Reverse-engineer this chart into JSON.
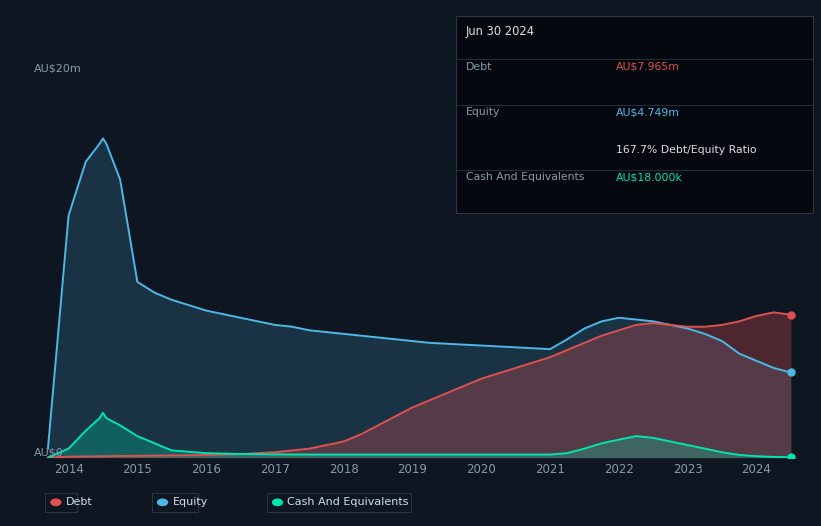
{
  "bg_color": "#0e1621",
  "plot_bg_color": "#0e1621",
  "grid_color": "#1a2535",
  "title_date": "Jun 30 2024",
  "info_box": {
    "debt_label": "Debt",
    "debt_value": "AU$7.965m",
    "equity_label": "Equity",
    "equity_value": "AU$4.749m",
    "ratio_text": "167.7% Debt/Equity Ratio",
    "cash_label": "Cash And Equivalents",
    "cash_value": "AU$18.000k"
  },
  "y_label_top": "AU$20m",
  "y_label_bottom": "AU$0",
  "debt_color": "#e05050",
  "equity_color": "#4db8e8",
  "cash_color": "#00e5b0",
  "equity_data_x": [
    2013.7,
    2014.0,
    2014.25,
    2014.45,
    2014.5,
    2014.55,
    2014.75,
    2015.0,
    2015.25,
    2015.5,
    2015.75,
    2016.0,
    2016.25,
    2016.5,
    2016.75,
    2017.0,
    2017.25,
    2017.5,
    2017.75,
    2018.0,
    2018.25,
    2018.5,
    2018.75,
    2019.0,
    2019.25,
    2019.5,
    2019.75,
    2020.0,
    2020.25,
    2020.5,
    2020.75,
    2021.0,
    2021.25,
    2021.5,
    2021.75,
    2022.0,
    2022.25,
    2022.5,
    2022.75,
    2023.0,
    2023.25,
    2023.5,
    2023.75,
    2024.0,
    2024.25,
    2024.5
  ],
  "equity_data_y": [
    0.5,
    13.5,
    16.5,
    17.5,
    17.8,
    17.5,
    15.5,
    9.8,
    9.2,
    8.8,
    8.5,
    8.2,
    8.0,
    7.8,
    7.6,
    7.4,
    7.3,
    7.1,
    7.0,
    6.9,
    6.8,
    6.7,
    6.6,
    6.5,
    6.4,
    6.35,
    6.3,
    6.25,
    6.2,
    6.15,
    6.1,
    6.05,
    6.6,
    7.2,
    7.6,
    7.8,
    7.7,
    7.6,
    7.4,
    7.2,
    6.9,
    6.5,
    5.8,
    5.4,
    5.0,
    4.749
  ],
  "debt_data_x": [
    2013.7,
    2014.0,
    2014.5,
    2015.0,
    2015.5,
    2016.0,
    2016.5,
    2017.0,
    2017.5,
    2018.0,
    2018.25,
    2018.5,
    2018.75,
    2019.0,
    2019.25,
    2019.5,
    2019.75,
    2020.0,
    2020.25,
    2020.5,
    2020.75,
    2021.0,
    2021.25,
    2021.5,
    2021.75,
    2022.0,
    2022.25,
    2022.5,
    2022.75,
    2023.0,
    2023.25,
    2023.5,
    2023.75,
    2024.0,
    2024.25,
    2024.5
  ],
  "debt_data_y": [
    0.0,
    0.05,
    0.08,
    0.1,
    0.12,
    0.15,
    0.2,
    0.3,
    0.5,
    0.9,
    1.3,
    1.8,
    2.3,
    2.8,
    3.2,
    3.6,
    4.0,
    4.4,
    4.7,
    5.0,
    5.3,
    5.6,
    6.0,
    6.4,
    6.8,
    7.1,
    7.4,
    7.5,
    7.4,
    7.3,
    7.3,
    7.4,
    7.6,
    7.9,
    8.1,
    7.965
  ],
  "cash_data_x": [
    2013.7,
    2014.0,
    2014.25,
    2014.45,
    2014.5,
    2014.55,
    2014.75,
    2015.0,
    2015.25,
    2015.5,
    2016.0,
    2016.5,
    2017.0,
    2017.5,
    2018.0,
    2018.5,
    2019.0,
    2019.5,
    2020.0,
    2020.5,
    2021.0,
    2021.25,
    2021.5,
    2021.75,
    2022.0,
    2022.25,
    2022.5,
    2022.75,
    2023.0,
    2023.25,
    2023.5,
    2023.75,
    2024.0,
    2024.25,
    2024.5
  ],
  "cash_data_y": [
    0.0,
    0.5,
    1.5,
    2.2,
    2.5,
    2.2,
    1.8,
    1.2,
    0.8,
    0.4,
    0.25,
    0.2,
    0.18,
    0.17,
    0.17,
    0.17,
    0.17,
    0.17,
    0.17,
    0.17,
    0.17,
    0.25,
    0.5,
    0.8,
    1.0,
    1.2,
    1.1,
    0.9,
    0.7,
    0.5,
    0.3,
    0.15,
    0.08,
    0.04,
    0.018
  ],
  "years": [
    2014,
    2015,
    2016,
    2017,
    2018,
    2019,
    2020,
    2021,
    2022,
    2023,
    2024
  ],
  "ylim_max": 22,
  "xlim_min": 2013.6,
  "xlim_max": 2024.7
}
